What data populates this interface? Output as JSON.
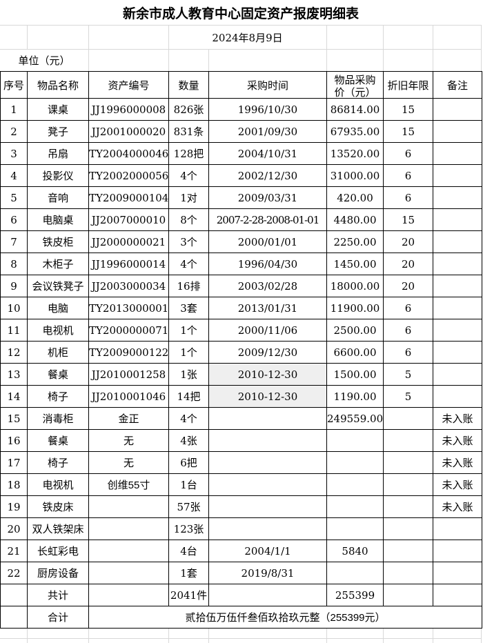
{
  "title": "新余市成人教育中心固定资产报废明细表",
  "date_line": "2024年8月9日",
  "unit_label": "单位（元）",
  "columns": [
    "序号",
    "物品名称",
    "资产编号",
    "数量",
    "采购时间",
    "物品采购价（元）",
    "折旧年限",
    "备注"
  ],
  "rows": [
    {
      "no": "1",
      "name": "课桌",
      "asset": "JJ1996000008",
      "qty": "826张",
      "date": "1996/10/30",
      "price": "86814.00",
      "years": "15",
      "remark": ""
    },
    {
      "no": "2",
      "name": "凳子",
      "asset": "JJ2001000020",
      "qty": "831条",
      "date": "2001/09/30",
      "price": "67935.00",
      "years": "15",
      "remark": ""
    },
    {
      "no": "3",
      "name": "吊扇",
      "asset": "TY2004000046",
      "qty": "128把",
      "date": "2004/10/31",
      "price": "13520.00",
      "years": "6",
      "remark": ""
    },
    {
      "no": "4",
      "name": "投影仪",
      "asset": "TY2002000056",
      "qty": "4个",
      "date": "2002/12/30",
      "price": "31000.00",
      "years": "6",
      "remark": ""
    },
    {
      "no": "5",
      "name": "音响",
      "asset": "TY2009000104",
      "qty": "1对",
      "date": "2009/03/31",
      "price": "420.00",
      "years": "6",
      "remark": ""
    },
    {
      "no": "6",
      "name": "电脑桌",
      "asset": "JJ2007000010",
      "qty": "8个",
      "date": "2007-2-28-2008-01-01",
      "price": "4480.00",
      "years": "15",
      "remark": "",
      "date_long": true
    },
    {
      "no": "7",
      "name": "铁皮柜",
      "asset": "JJ2000000021",
      "qty": "3个",
      "date": "2000/01/01",
      "price": "2250.00",
      "years": "20",
      "remark": ""
    },
    {
      "no": "8",
      "name": "木柜子",
      "asset": "JJ1996000014",
      "qty": "4个",
      "date": "1996/04/30",
      "price": "1450.00",
      "years": "20",
      "remark": ""
    },
    {
      "no": "9",
      "name": "会议铁凳子",
      "asset": "JJ2003000034",
      "qty": "16排",
      "date": "2003/02/28",
      "price": "18000.00",
      "years": "20",
      "remark": ""
    },
    {
      "no": "10",
      "name": "电脑",
      "asset": "TY2013000001",
      "qty": "3套",
      "date": "2013/01/31",
      "price": "11900.00",
      "years": "6",
      "remark": ""
    },
    {
      "no": "11",
      "name": "电视机",
      "asset": "TY2000000071",
      "qty": "1个",
      "date": "2000/11/06",
      "price": "2500.00",
      "years": "6",
      "remark": ""
    },
    {
      "no": "12",
      "name": "机柜",
      "asset": "TY2009000122",
      "qty": "1个",
      "date": "2009/12/30",
      "price": "6600.00",
      "years": "6",
      "remark": ""
    },
    {
      "no": "13",
      "name": "餐桌",
      "asset": "JJ2010001258",
      "qty": "1张",
      "date": "2010-12-30",
      "price": "1500.00",
      "years": "5",
      "remark": "",
      "date_gray": true
    },
    {
      "no": "14",
      "name": "椅子",
      "asset": "JJ2010001046",
      "qty": "14把",
      "date": "2010-12-30",
      "price": "1190.00",
      "years": "5",
      "remark": "",
      "date_gray": true
    },
    {
      "no": "15",
      "name": "消毒柜",
      "asset": "金正",
      "qty": "4个",
      "date": "",
      "price": "249559.00",
      "years": "",
      "remark": "未入账"
    },
    {
      "no": "16",
      "name": "餐桌",
      "asset": "无",
      "qty": "4张",
      "date": "",
      "price": "",
      "years": "",
      "remark": "未入账"
    },
    {
      "no": "17",
      "name": "椅子",
      "asset": "无",
      "qty": "6把",
      "date": "",
      "price": "",
      "years": "",
      "remark": "未入账"
    },
    {
      "no": "18",
      "name": "电视机",
      "asset": "创维55寸",
      "qty": "1台",
      "date": "",
      "price": "",
      "years": "",
      "remark": "未入账"
    },
    {
      "no": "19",
      "name": "铁皮床",
      "asset": "",
      "qty": "57张",
      "date": "",
      "price": "",
      "years": "",
      "remark": "未入账"
    },
    {
      "no": "20",
      "name": "双人铁架床",
      "asset": "",
      "qty": "123张",
      "date": "",
      "price": "",
      "years": "",
      "remark": ""
    },
    {
      "no": "21",
      "name": "长虹彩电",
      "asset": "",
      "qty": "4台",
      "date": "2004/1/1",
      "price": "5840",
      "years": "",
      "remark": "",
      "price_center": true,
      "date_mid": true
    },
    {
      "no": "22",
      "name": "厨房设备",
      "asset": "",
      "qty": "1套",
      "date": "2019/8/31",
      "price": "",
      "years": "",
      "remark": "",
      "date_mid": true
    }
  ],
  "subtotal": {
    "no": "",
    "label": "共计",
    "asset": "",
    "qty": "2041件",
    "date": "",
    "price": "255399",
    "years": "",
    "remark": ""
  },
  "total": {
    "label": "合计",
    "text": "贰拾伍万伍仟叁佰玖拾玖元整（255399元）"
  },
  "colors": {
    "border": "#000000",
    "grid_light": "#d8d8d8",
    "date_cell_bg": "#efefef"
  }
}
